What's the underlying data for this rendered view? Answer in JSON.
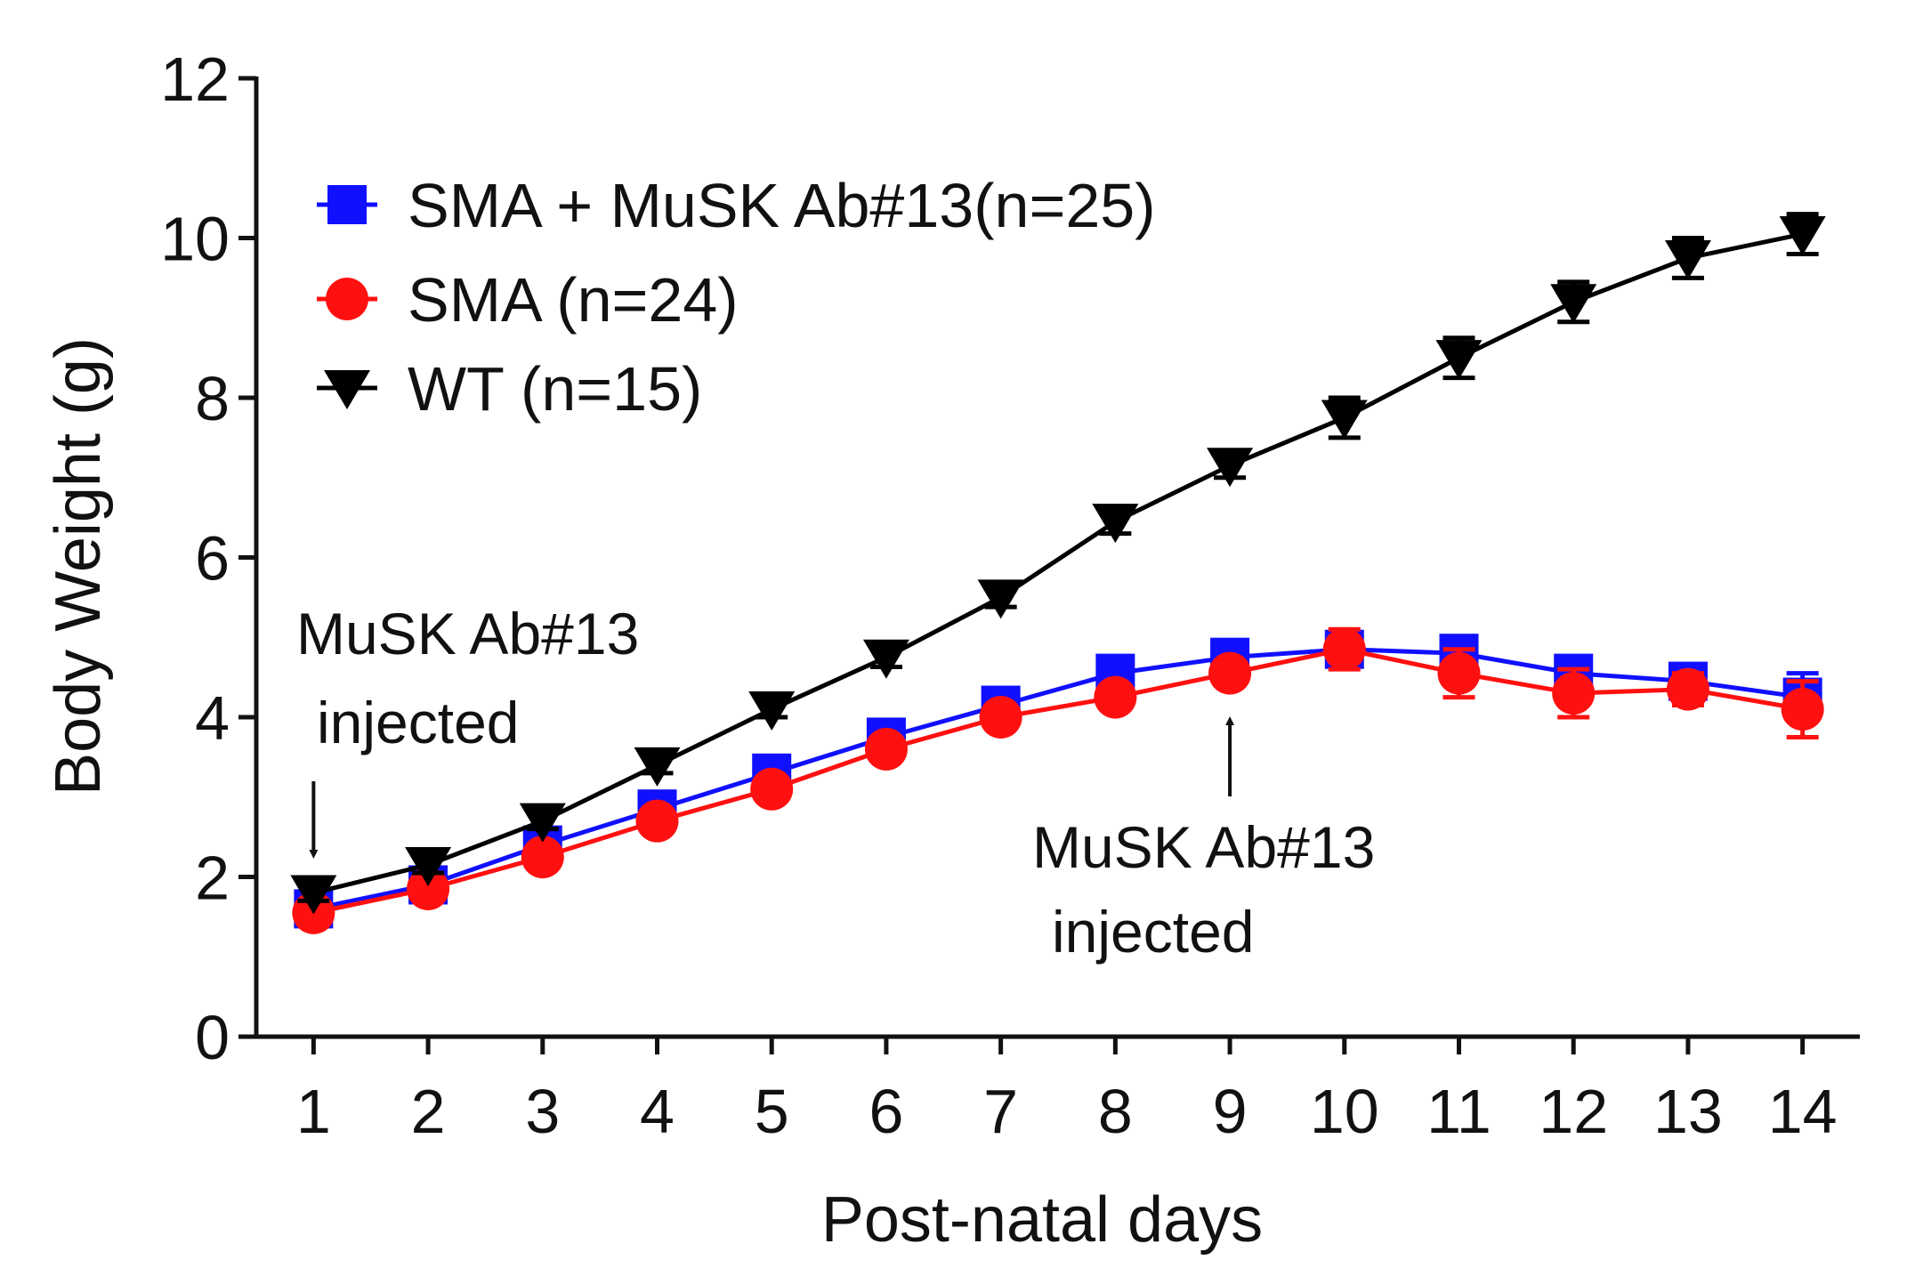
{
  "chart_data": {
    "type": "line",
    "title": "",
    "xlabel": "Post-natal days",
    "ylabel": "Body Weight (g)",
    "x": [
      1,
      2,
      3,
      4,
      5,
      6,
      7,
      8,
      9,
      10,
      11,
      12,
      13,
      14
    ],
    "xlim": [
      0.5,
      14.5
    ],
    "ylim": [
      0,
      12
    ],
    "yticks": [
      0,
      2,
      4,
      6,
      8,
      10,
      12
    ],
    "grid": false,
    "legend_position": "top-left",
    "series": [
      {
        "name": "SMA + MuSK Ab#13(n=25)",
        "color": "#1010ff",
        "marker": "square",
        "values": [
          1.6,
          1.9,
          2.4,
          2.85,
          3.3,
          3.75,
          4.15,
          4.55,
          4.75,
          4.85,
          4.8,
          4.55,
          4.45,
          4.25
        ],
        "errors": [
          0.1,
          0.1,
          0.1,
          0.1,
          0.1,
          0.1,
          0.12,
          0.12,
          0.15,
          0.2,
          0.2,
          0.2,
          0.2,
          0.3
        ]
      },
      {
        "name": "SMA (n=24)",
        "color": "#ff1010",
        "marker": "circle",
        "values": [
          1.55,
          1.85,
          2.25,
          2.7,
          3.1,
          3.6,
          4.0,
          4.25,
          4.55,
          4.85,
          4.55,
          4.3,
          4.35,
          4.1
        ],
        "errors": [
          0.1,
          0.1,
          0.1,
          0.1,
          0.1,
          0.1,
          0.12,
          0.12,
          0.15,
          0.25,
          0.3,
          0.3,
          0.2,
          0.35
        ]
      },
      {
        "name": "WT (n=15)",
        "color": "#000000",
        "marker": "triangle-down",
        "values": [
          1.8,
          2.15,
          2.7,
          3.4,
          4.1,
          4.75,
          5.5,
          6.45,
          7.15,
          7.75,
          8.5,
          9.2,
          9.75,
          10.05
        ],
        "errors": [
          0.1,
          0.1,
          0.1,
          0.1,
          0.1,
          0.12,
          0.12,
          0.15,
          0.15,
          0.25,
          0.25,
          0.25,
          0.25,
          0.25
        ]
      }
    ],
    "annotations": [
      {
        "lines": [
          "MuSK Ab#13",
          "injected"
        ],
        "day": 1,
        "arrow": "down"
      },
      {
        "lines": [
          "MuSK Ab#13",
          "injected"
        ],
        "day": 9,
        "arrow": "up"
      }
    ]
  }
}
